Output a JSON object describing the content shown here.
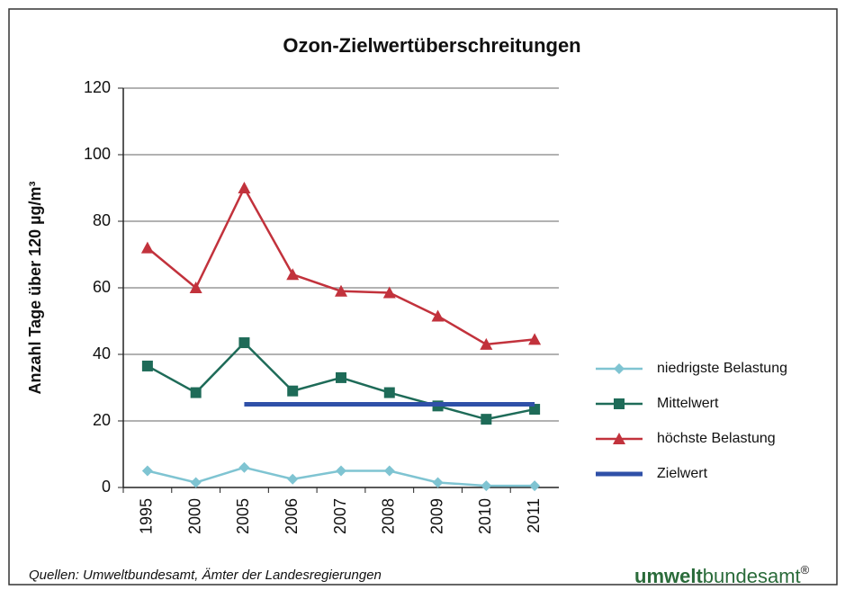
{
  "chart_data": {
    "type": "line",
    "title": "Ozon-Zielwertüberschreitungen",
    "y_label": "Anzahl Tage über 120 µg/m³",
    "categories": [
      "1995",
      "2000",
      "2005",
      "2006",
      "2007",
      "2008",
      "2009",
      "2010",
      "2011"
    ],
    "series": [
      {
        "name": "niedrigste Belastung",
        "color": "#7fc4d2",
        "marker": "diamond",
        "values": [
          5,
          1.5,
          6,
          2.5,
          5,
          5,
          1.5,
          0.5,
          0.5
        ]
      },
      {
        "name": "Mittelwert",
        "color": "#1e6b58",
        "marker": "square",
        "values": [
          36.5,
          28.5,
          43.5,
          29,
          33,
          28.5,
          24.5,
          20.5,
          23.5
        ]
      },
      {
        "name": "höchste Belastung",
        "color": "#c2323c",
        "marker": "triangle",
        "values": [
          72,
          60,
          90,
          64,
          59,
          58.5,
          51.5,
          43,
          44.5
        ]
      },
      {
        "name": "Zielwert",
        "color": "#2f50a8",
        "values": [
          null,
          null,
          25,
          25,
          25,
          25,
          25,
          25,
          25
        ]
      }
    ],
    "ylim": [
      0,
      120
    ],
    "yticks": [
      0,
      20,
      40,
      60,
      80,
      100,
      120
    ],
    "grid": true,
    "source": "Quellen: Umweltbundesamt, Ämter der Landesregierungen",
    "logo": {
      "bold": "umwelt",
      "regular": "bundesamt",
      "mark": "®"
    }
  }
}
